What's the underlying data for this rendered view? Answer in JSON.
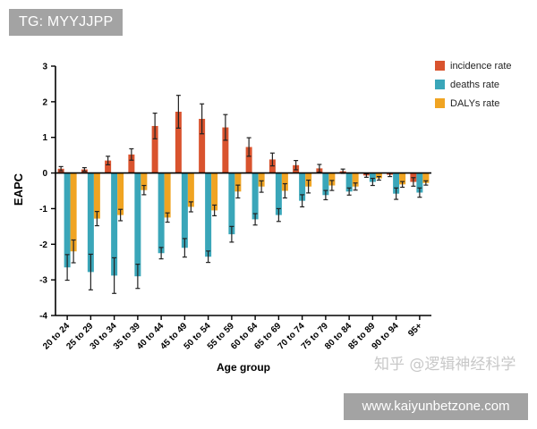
{
  "watermarks": {
    "tag": "TG: MYYJJPP",
    "site": "www.kaiyunbetzone.com",
    "zhihu": "知乎 @逻辑神经科学"
  },
  "chart_data": {
    "type": "bar",
    "xlabel": "Age group",
    "ylabel": "EAPC",
    "ylim": [
      -4,
      3
    ],
    "yticks": [
      -4,
      -3,
      -2,
      -1,
      0,
      1,
      2,
      3
    ],
    "legend_position": "top-right",
    "categories": [
      "20 to 24",
      "25 to 29",
      "30 to 34",
      "35 to 39",
      "40 to 44",
      "45 to 49",
      "50 to 54",
      "55 to 59",
      "60 to 64",
      "65 to 69",
      "70 to 74",
      "75 to 79",
      "80 to 84",
      "85 to 89",
      "90 to 94",
      "95+"
    ],
    "series": [
      {
        "name": "incidence rate",
        "color": "#d9532e",
        "values": [
          0.12,
          0.1,
          0.35,
          0.52,
          1.32,
          1.72,
          1.52,
          1.28,
          0.73,
          0.38,
          0.22,
          0.13,
          0.05,
          -0.07,
          -0.05,
          -0.25
        ],
        "err": [
          0.06,
          0.05,
          0.12,
          0.16,
          0.36,
          0.46,
          0.42,
          0.36,
          0.26,
          0.18,
          0.13,
          0.11,
          0.06,
          0.05,
          0.05,
          0.12
        ]
      },
      {
        "name": "deaths rate",
        "color": "#3aa6b9",
        "values": [
          -2.65,
          -2.78,
          -2.88,
          -2.9,
          -2.25,
          -2.1,
          -2.35,
          -1.72,
          -1.3,
          -1.18,
          -0.78,
          -0.62,
          -0.52,
          -0.25,
          -0.58,
          -0.55
        ],
        "err": [
          0.36,
          0.5,
          0.5,
          0.34,
          0.16,
          0.26,
          0.16,
          0.22,
          0.16,
          0.18,
          0.17,
          0.13,
          0.1,
          0.1,
          0.16,
          0.13
        ]
      },
      {
        "name": "DALYs rate",
        "color": "#f0a422",
        "values": [
          -2.2,
          -1.28,
          -1.18,
          -0.48,
          -1.25,
          -0.95,
          -1.05,
          -0.52,
          -0.38,
          -0.5,
          -0.38,
          -0.35,
          -0.38,
          -0.15,
          -0.32,
          -0.28
        ],
        "err": [
          0.32,
          0.2,
          0.16,
          0.13,
          0.13,
          0.14,
          0.15,
          0.18,
          0.16,
          0.2,
          0.18,
          0.14,
          0.1,
          0.05,
          0.08,
          0.06
        ]
      }
    ]
  }
}
